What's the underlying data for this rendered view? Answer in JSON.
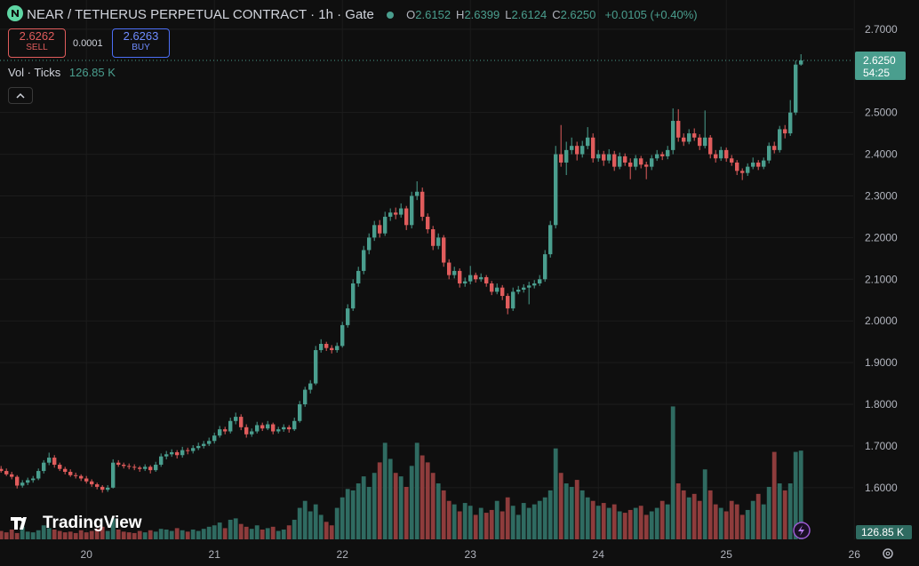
{
  "header": {
    "title": "NEAR / TETHERUS PERPETUAL CONTRACT · 1h · Gate",
    "ohlc": [
      {
        "label": "O",
        "value": "2.6152"
      },
      {
        "label": "H",
        "value": "2.6399"
      },
      {
        "label": "L",
        "value": "2.6124"
      },
      {
        "label": "C",
        "value": "2.6250"
      }
    ],
    "change": "+0.0105 (+0.40%)",
    "sell_price": "2.6262",
    "sell_label": "SELL",
    "spread": "0.0001",
    "buy_price": "2.6263",
    "buy_label": "BUY",
    "volume_title": "Vol · Ticks",
    "volume_value": "126.85 K",
    "brand": "TradingView"
  },
  "chart_data": {
    "type": "candlestick",
    "up_color": "#4a9e8e",
    "down_color": "#e05c5c",
    "up_volume_color": "#2f6b61",
    "down_volume_color": "#8e3c3c",
    "grid": true,
    "ylim": [
      1.476,
      2.77
    ],
    "yticks": [
      {
        "value": 1.6,
        "label": "1.6000"
      },
      {
        "value": 1.7,
        "label": "1.7000"
      },
      {
        "value": 1.8,
        "label": "1.8000"
      },
      {
        "value": 1.9,
        "label": "1.9000"
      },
      {
        "value": 2.0,
        "label": "2.0000"
      },
      {
        "value": 2.1,
        "label": "2.1000"
      },
      {
        "value": 2.2,
        "label": "2.2000"
      },
      {
        "value": 2.3,
        "label": "2.3000"
      },
      {
        "value": 2.4,
        "label": "2.4000"
      },
      {
        "value": 2.5,
        "label": "2.5000"
      },
      {
        "value": 2.7,
        "label": "2.7000"
      }
    ],
    "xlim": [
      -0.2,
      159.8
    ],
    "xticks": [
      {
        "value": 16,
        "label": "20"
      },
      {
        "value": 40,
        "label": "21"
      },
      {
        "value": 64,
        "label": "22"
      },
      {
        "value": 88,
        "label": "23"
      },
      {
        "value": 112,
        "label": "24"
      },
      {
        "value": 136,
        "label": "25"
      },
      {
        "value": 160,
        "label": "26"
      }
    ],
    "vol_ylim": [
      0,
      771
    ],
    "last_price": {
      "value": 2.625,
      "label": "2.6250"
    },
    "countdown": "54:25",
    "last_volume_label": "126.85 K",
    "candles": [
      [
        1.645,
        1.652,
        1.636,
        1.64
      ],
      [
        1.64,
        1.646,
        1.628,
        1.632
      ],
      [
        1.632,
        1.638,
        1.62,
        1.626
      ],
      [
        1.626,
        1.63,
        1.598,
        1.605
      ],
      [
        1.605,
        1.618,
        1.6,
        1.612
      ],
      [
        1.612,
        1.624,
        1.606,
        1.618
      ],
      [
        1.618,
        1.628,
        1.612,
        1.622
      ],
      [
        1.622,
        1.646,
        1.618,
        1.64
      ],
      [
        1.64,
        1.666,
        1.634,
        1.66
      ],
      [
        1.66,
        1.684,
        1.654,
        1.672
      ],
      [
        1.672,
        1.678,
        1.648,
        1.655
      ],
      [
        1.655,
        1.66,
        1.64,
        1.645
      ],
      [
        1.645,
        1.65,
        1.632,
        1.638
      ],
      [
        1.638,
        1.644,
        1.626,
        1.63
      ],
      [
        1.63,
        1.636,
        1.622,
        1.628
      ],
      [
        1.628,
        1.632,
        1.616,
        1.622
      ],
      [
        1.622,
        1.628,
        1.61,
        1.615
      ],
      [
        1.615,
        1.62,
        1.602,
        1.608
      ],
      [
        1.608,
        1.612,
        1.596,
        1.602
      ],
      [
        1.602,
        1.606,
        1.588,
        1.595
      ],
      [
        1.595,
        1.606,
        1.59,
        1.6
      ],
      [
        1.6,
        1.668,
        1.598,
        1.66
      ],
      [
        1.66,
        1.666,
        1.65,
        1.655
      ],
      [
        1.655,
        1.66,
        1.646,
        1.652
      ],
      [
        1.652,
        1.658,
        1.644,
        1.65
      ],
      [
        1.65,
        1.656,
        1.642,
        1.648
      ],
      [
        1.648,
        1.652,
        1.638,
        1.645
      ],
      [
        1.645,
        1.656,
        1.64,
        1.65
      ],
      [
        1.65,
        1.654,
        1.634,
        1.642
      ],
      [
        1.642,
        1.662,
        1.638,
        1.655
      ],
      [
        1.655,
        1.682,
        1.65,
        1.675
      ],
      [
        1.675,
        1.688,
        1.668,
        1.68
      ],
      [
        1.68,
        1.692,
        1.674,
        1.685
      ],
      [
        1.685,
        1.69,
        1.67,
        1.678
      ],
      [
        1.678,
        1.698,
        1.672,
        1.69
      ],
      [
        1.69,
        1.696,
        1.68,
        1.688
      ],
      [
        1.688,
        1.702,
        1.682,
        1.695
      ],
      [
        1.695,
        1.708,
        1.69,
        1.7
      ],
      [
        1.7,
        1.712,
        1.694,
        1.705
      ],
      [
        1.705,
        1.72,
        1.7,
        1.712
      ],
      [
        1.712,
        1.732,
        1.706,
        1.725
      ],
      [
        1.725,
        1.748,
        1.72,
        1.74
      ],
      [
        1.74,
        1.746,
        1.728,
        1.735
      ],
      [
        1.735,
        1.768,
        1.73,
        1.76
      ],
      [
        1.76,
        1.78,
        1.752,
        1.77
      ],
      [
        1.77,
        1.776,
        1.738,
        1.745
      ],
      [
        1.745,
        1.752,
        1.72,
        1.728
      ],
      [
        1.728,
        1.742,
        1.722,
        1.735
      ],
      [
        1.735,
        1.758,
        1.73,
        1.75
      ],
      [
        1.75,
        1.756,
        1.736,
        1.742
      ],
      [
        1.742,
        1.76,
        1.738,
        1.752
      ],
      [
        1.752,
        1.756,
        1.728,
        1.735
      ],
      [
        1.735,
        1.746,
        1.73,
        1.74
      ],
      [
        1.74,
        1.752,
        1.734,
        1.745
      ],
      [
        1.745,
        1.75,
        1.732,
        1.74
      ],
      [
        1.74,
        1.768,
        1.736,
        1.76
      ],
      [
        1.76,
        1.808,
        1.756,
        1.8
      ],
      [
        1.8,
        1.842,
        1.794,
        1.835
      ],
      [
        1.835,
        1.858,
        1.826,
        1.85
      ],
      [
        1.85,
        1.94,
        1.846,
        1.93
      ],
      [
        1.93,
        1.956,
        1.924,
        1.945
      ],
      [
        1.945,
        1.95,
        1.928,
        1.935
      ],
      [
        1.935,
        1.942,
        1.922,
        1.93
      ],
      [
        1.93,
        1.948,
        1.924,
        1.94
      ],
      [
        1.94,
        1.998,
        1.936,
        1.99
      ],
      [
        1.99,
        2.04,
        1.984,
        2.03
      ],
      [
        2.03,
        2.1,
        2.024,
        2.09
      ],
      [
        2.09,
        2.13,
        2.082,
        2.12
      ],
      [
        2.12,
        2.18,
        2.112,
        2.17
      ],
      [
        2.17,
        2.21,
        2.16,
        2.2
      ],
      [
        2.2,
        2.24,
        2.192,
        2.23
      ],
      [
        2.23,
        2.242,
        2.2,
        2.21
      ],
      [
        2.21,
        2.262,
        2.204,
        2.25
      ],
      [
        2.25,
        2.27,
        2.24,
        2.26
      ],
      [
        2.26,
        2.272,
        2.244,
        2.255
      ],
      [
        2.255,
        2.282,
        2.248,
        2.27
      ],
      [
        2.27,
        2.276,
        2.218,
        2.23
      ],
      [
        2.23,
        2.31,
        2.222,
        2.3
      ],
      [
        2.3,
        2.335,
        2.29,
        2.31
      ],
      [
        2.31,
        2.32,
        2.24,
        2.25
      ],
      [
        2.25,
        2.258,
        2.21,
        2.22
      ],
      [
        2.22,
        2.228,
        2.17,
        2.18
      ],
      [
        2.18,
        2.21,
        2.172,
        2.2
      ],
      [
        2.2,
        2.206,
        2.13,
        2.14
      ],
      [
        2.14,
        2.148,
        2.1,
        2.11
      ],
      [
        2.11,
        2.13,
        2.102,
        2.12
      ],
      [
        2.12,
        2.126,
        2.08,
        2.09
      ],
      [
        2.09,
        2.104,
        2.082,
        2.095
      ],
      [
        2.095,
        2.132,
        2.088,
        2.11
      ],
      [
        2.11,
        2.116,
        2.092,
        2.1
      ],
      [
        2.1,
        2.114,
        2.094,
        2.105
      ],
      [
        2.105,
        2.11,
        2.082,
        2.09
      ],
      [
        2.09,
        2.096,
        2.062,
        2.07
      ],
      [
        2.07,
        2.09,
        2.064,
        2.08
      ],
      [
        2.08,
        2.086,
        2.05,
        2.06
      ],
      [
        2.06,
        2.066,
        2.016,
        2.03
      ],
      [
        2.03,
        2.08,
        2.024,
        2.07
      ],
      [
        2.07,
        2.084,
        2.064,
        2.075
      ],
      [
        2.075,
        2.088,
        2.068,
        2.08
      ],
      [
        2.08,
        2.094,
        2.04,
        2.085
      ],
      [
        2.085,
        2.098,
        2.078,
        2.09
      ],
      [
        2.09,
        2.11,
        2.084,
        2.1
      ],
      [
        2.1,
        2.17,
        2.094,
        2.16
      ],
      [
        2.16,
        2.24,
        2.152,
        2.23
      ],
      [
        2.23,
        2.42,
        2.222,
        2.4
      ],
      [
        2.4,
        2.47,
        2.37,
        2.38
      ],
      [
        2.38,
        2.43,
        2.35,
        2.41
      ],
      [
        2.41,
        2.44,
        2.4,
        2.42
      ],
      [
        2.42,
        2.43,
        2.385,
        2.4
      ],
      [
        2.4,
        2.432,
        2.392,
        2.42
      ],
      [
        2.42,
        2.465,
        2.412,
        2.44
      ],
      [
        2.44,
        2.45,
        2.38,
        2.39
      ],
      [
        2.39,
        2.41,
        2.382,
        2.4
      ],
      [
        2.4,
        2.408,
        2.372,
        2.385
      ],
      [
        2.385,
        2.412,
        2.378,
        2.4
      ],
      [
        2.4,
        2.408,
        2.36,
        2.37
      ],
      [
        2.37,
        2.404,
        2.364,
        2.395
      ],
      [
        2.395,
        2.402,
        2.372,
        2.38
      ],
      [
        2.38,
        2.39,
        2.34,
        2.37
      ],
      [
        2.37,
        2.398,
        2.362,
        2.39
      ],
      [
        2.39,
        2.396,
        2.366,
        2.375
      ],
      [
        2.375,
        2.382,
        2.34,
        2.37
      ],
      [
        2.37,
        2.398,
        2.362,
        2.39
      ],
      [
        2.39,
        2.41,
        2.384,
        2.4
      ],
      [
        2.4,
        2.406,
        2.386,
        2.395
      ],
      [
        2.395,
        2.42,
        2.388,
        2.41
      ],
      [
        2.41,
        2.51,
        2.4,
        2.48
      ],
      [
        2.48,
        2.508,
        2.43,
        2.44
      ],
      [
        2.44,
        2.45,
        2.42,
        2.43
      ],
      [
        2.43,
        2.46,
        2.424,
        2.45
      ],
      [
        2.45,
        2.462,
        2.432,
        2.44
      ],
      [
        2.44,
        2.448,
        2.41,
        2.42
      ],
      [
        2.42,
        2.505,
        2.414,
        2.44
      ],
      [
        2.44,
        2.446,
        2.39,
        2.4
      ],
      [
        2.4,
        2.41,
        2.38,
        2.39
      ],
      [
        2.39,
        2.418,
        2.384,
        2.41
      ],
      [
        2.41,
        2.416,
        2.382,
        2.39
      ],
      [
        2.39,
        2.398,
        2.372,
        2.38
      ],
      [
        2.38,
        2.386,
        2.35,
        2.36
      ],
      [
        2.36,
        2.366,
        2.338,
        2.355
      ],
      [
        2.355,
        2.378,
        2.348,
        2.37
      ],
      [
        2.37,
        2.392,
        2.364,
        2.38
      ],
      [
        2.38,
        2.386,
        2.362,
        2.37
      ],
      [
        2.37,
        2.392,
        2.364,
        2.385
      ],
      [
        2.385,
        2.428,
        2.378,
        2.42
      ],
      [
        2.42,
        2.43,
        2.402,
        2.41
      ],
      [
        2.41,
        2.468,
        2.404,
        2.46
      ],
      [
        2.46,
        2.47,
        2.438,
        2.45
      ],
      [
        2.45,
        2.53,
        2.444,
        2.5
      ],
      [
        2.5,
        2.625,
        2.494,
        2.615
      ],
      [
        2.6152,
        2.6399,
        2.6124,
        2.625
      ]
    ],
    "volume": [
      12,
      10,
      14,
      9,
      18,
      11,
      10,
      13,
      20,
      16,
      14,
      12,
      10,
      11,
      9,
      13,
      10,
      12,
      15,
      18,
      12,
      30,
      14,
      11,
      10,
      9,
      12,
      10,
      13,
      11,
      15,
      14,
      12,
      16,
      13,
      11,
      14,
      12,
      15,
      18,
      20,
      24,
      16,
      28,
      30,
      22,
      18,
      15,
      20,
      14,
      16,
      18,
      12,
      14,
      20,
      28,
      45,
      55,
      40,
      50,
      35,
      25,
      20,
      45,
      60,
      72,
      70,
      80,
      90,
      75,
      95,
      110,
      138,
      115,
      95,
      90,
      75,
      105,
      138,
      120,
      110,
      95,
      80,
      70,
      55,
      50,
      40,
      52,
      48,
      35,
      45,
      38,
      42,
      55,
      40,
      60,
      48,
      35,
      52,
      45,
      50,
      55,
      60,
      70,
      130,
      95,
      80,
      75,
      85,
      70,
      60,
      55,
      48,
      52,
      45,
      50,
      40,
      38,
      42,
      45,
      48,
      35,
      40,
      45,
      55,
      50,
      190,
      80,
      70,
      60,
      65,
      55,
      100,
      70,
      50,
      45,
      40,
      55,
      50,
      35,
      42,
      55,
      65,
      50,
      75,
      125,
      80,
      70,
      80,
      125,
      126.85
    ]
  }
}
